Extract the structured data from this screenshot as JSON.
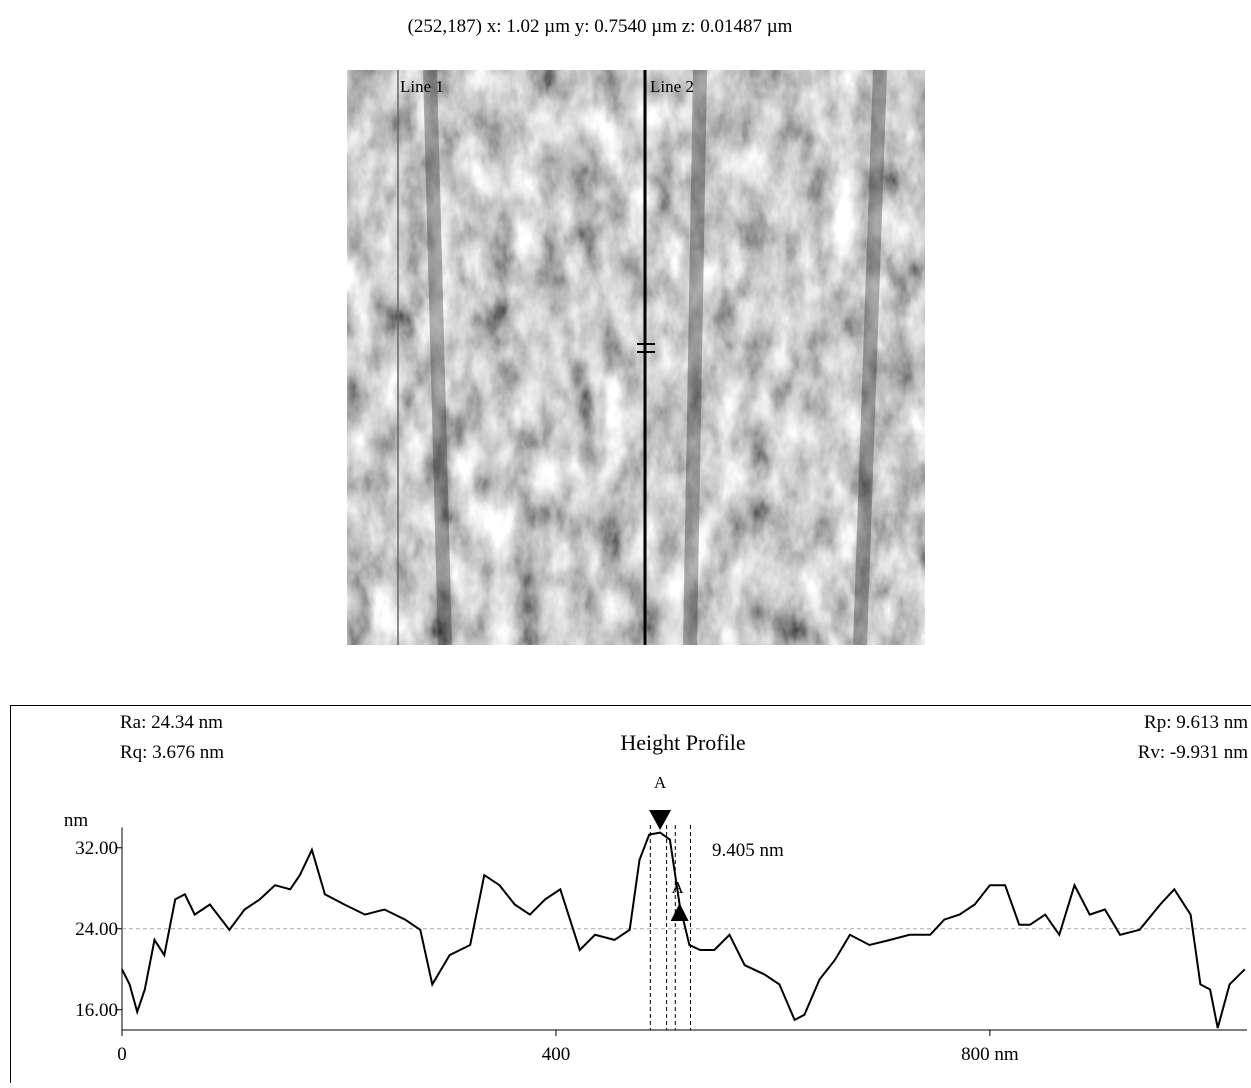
{
  "header": "(252,187)  x: 1.02 µm   y: 0.7540 µm  z: 0.01487 µm",
  "image": {
    "line_labels": [
      "Line 1",
      "Line 2"
    ]
  },
  "chart_data": {
    "type": "line",
    "title": "Height Profile",
    "stats": [
      "Ra: 24.34 nm",
      "Rq: 3.676 nm",
      "Rp: 9.613 nm",
      "Rv: -9.931 nm"
    ],
    "y_unit": "nm",
    "annotation": "9.405 nm",
    "markers": [
      {
        "label": "A",
        "x": 496
      },
      {
        "label": "A",
        "x": 514
      }
    ],
    "cursor_lines": [
      487,
      502,
      510,
      524
    ],
    "reference_line": 24,
    "xlim": [
      0,
      1037
    ],
    "ylim": [
      14,
      34
    ],
    "xticks": [
      0,
      400,
      {
        "value": 800,
        "label": "800 nm"
      }
    ],
    "yticks": [
      {
        "value": 16,
        "label": "16.00"
      },
      {
        "value": 24,
        "label": "24.00"
      },
      {
        "value": 32,
        "label": "32.00"
      }
    ],
    "x": [
      0,
      7,
      14,
      21,
      30,
      39,
      49,
      58,
      67,
      81,
      99,
      113,
      127,
      141,
      155,
      164,
      175,
      187,
      205,
      224,
      242,
      261,
      275,
      286,
      302,
      321,
      334,
      348,
      362,
      376,
      390,
      404,
      413,
      422,
      436,
      454,
      468,
      477,
      486,
      496,
      505,
      514,
      523,
      533,
      546,
      560,
      574,
      592,
      606,
      620,
      629,
      643,
      657,
      671,
      689,
      708,
      726,
      745,
      758,
      772,
      786,
      800,
      814,
      827,
      837,
      851,
      864,
      878,
      892,
      906,
      920,
      938,
      957,
      970,
      985,
      994,
      1003,
      1010,
      1021,
      1035
    ],
    "series": [
      {
        "color": "#000000",
        "values": [
          20.0,
          18.5,
          15.8,
          18.0,
          22.9,
          21.4,
          26.9,
          27.4,
          25.4,
          26.4,
          23.9,
          25.9,
          26.9,
          28.3,
          27.9,
          29.3,
          31.8,
          27.4,
          26.4,
          25.4,
          25.9,
          24.9,
          23.9,
          18.5,
          21.4,
          22.4,
          29.3,
          28.3,
          26.4,
          25.4,
          26.9,
          27.9,
          24.9,
          21.9,
          23.4,
          22.9,
          23.9,
          30.8,
          33.3,
          33.5,
          32.8,
          26.4,
          22.4,
          21.9,
          21.9,
          23.4,
          20.4,
          19.5,
          18.5,
          15.0,
          15.5,
          19.0,
          20.9,
          23.4,
          22.4,
          22.9,
          23.4,
          23.4,
          24.9,
          25.4,
          26.4,
          28.3,
          28.3,
          24.4,
          24.4,
          25.4,
          23.4,
          28.3,
          25.4,
          25.9,
          23.4,
          23.9,
          26.4,
          27.9,
          25.4,
          18.5,
          18.0,
          14.2,
          18.5,
          20.0
        ]
      }
    ]
  }
}
